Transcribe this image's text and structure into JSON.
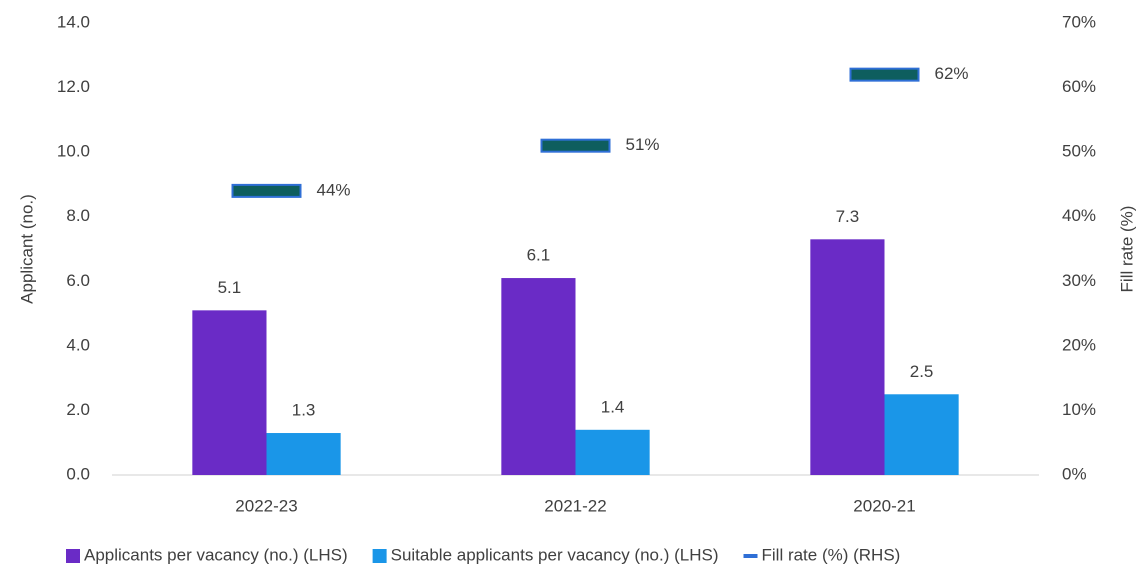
{
  "chart_data": {
    "type": "bar",
    "categories": [
      "2022-23",
      "2021-22",
      "2020-21"
    ],
    "ylabel": "Applicant  (no.)",
    "y2label": "Fill rate (%)",
    "ylim": [
      0,
      14
    ],
    "yticks": [
      {
        "value": 0,
        "label": "0.0"
      },
      {
        "value": 2,
        "label": "2.0"
      },
      {
        "value": 4,
        "label": "4.0"
      },
      {
        "value": 6,
        "label": "6.0"
      },
      {
        "value": 8,
        "label": "8.0"
      },
      {
        "value": 10,
        "label": "10.0"
      },
      {
        "value": 12,
        "label": "12.0"
      },
      {
        "value": 14,
        "label": "14.0"
      }
    ],
    "y2lim": [
      0,
      70
    ],
    "y2ticks": [
      {
        "value": 0,
        "label": "0%"
      },
      {
        "value": 10,
        "label": "10%"
      },
      {
        "value": 20,
        "label": "20%"
      },
      {
        "value": 30,
        "label": "30%"
      },
      {
        "value": 40,
        "label": "40%"
      },
      {
        "value": 50,
        "label": "50%"
      },
      {
        "value": 60,
        "label": "60%"
      },
      {
        "value": 70,
        "label": "70%"
      }
    ],
    "series": [
      {
        "name": "Applicants per vacancy (no.) (LHS)",
        "color": "#6a2bc6",
        "type": "bar",
        "values": [
          5.1,
          6.1,
          7.3
        ]
      },
      {
        "name": "Suitable applicants per vacancy (no.) (LHS)",
        "color": "#1a96e8",
        "type": "bar",
        "values": [
          1.3,
          1.4,
          2.5
        ]
      },
      {
        "name": "Fill rate (%) (RHS)",
        "color": "#0e5e5e",
        "edge_color": "#2f6fd6",
        "type": "marker",
        "axis": "y2",
        "values": [
          44,
          51,
          62
        ],
        "value_labels": [
          "44%",
          "51%",
          "62%"
        ]
      }
    ],
    "legend": "bottom"
  }
}
